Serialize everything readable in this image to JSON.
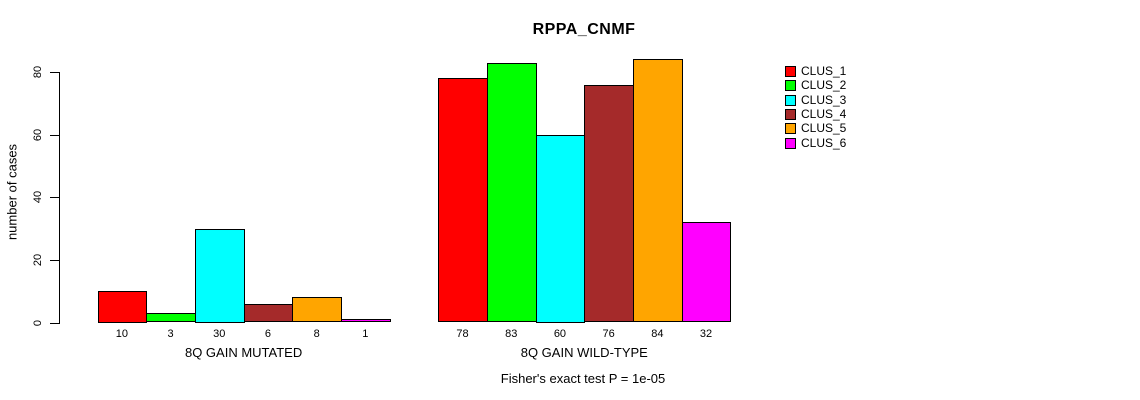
{
  "chart_data": {
    "type": "bar",
    "title": "RPPA_CNMF",
    "ylabel": "number of cases",
    "ylim": [
      0,
      80
    ],
    "yticks": [
      0,
      20,
      40,
      60,
      80
    ],
    "categories": [
      "8Q GAIN MUTATED",
      "8Q GAIN WILD-TYPE"
    ],
    "series": [
      {
        "name": "CLUS_1",
        "color": "#ff0000",
        "values": [
          10,
          78
        ]
      },
      {
        "name": "CLUS_2",
        "color": "#00ff00",
        "values": [
          3,
          83
        ]
      },
      {
        "name": "CLUS_3",
        "color": "#00ffff",
        "values": [
          30,
          60
        ]
      },
      {
        "name": "CLUS_4",
        "color": "#a52a2a",
        "values": [
          6,
          76
        ]
      },
      {
        "name": "CLUS_5",
        "color": "#ffa500",
        "values": [
          8,
          84
        ]
      },
      {
        "name": "CLUS_6",
        "color": "#ff00ff",
        "values": [
          1,
          32
        ]
      }
    ],
    "bar_value_labels_shown": true,
    "legend": {
      "position": "right",
      "entries": [
        "CLUS_1",
        "CLUS_2",
        "CLUS_3",
        "CLUS_4",
        "CLUS_5",
        "CLUS_6"
      ]
    },
    "footnote": "Fisher's exact test P = 1e-05",
    "grid": false,
    "axis_color": "#000000",
    "background_color": "#ffffff"
  }
}
